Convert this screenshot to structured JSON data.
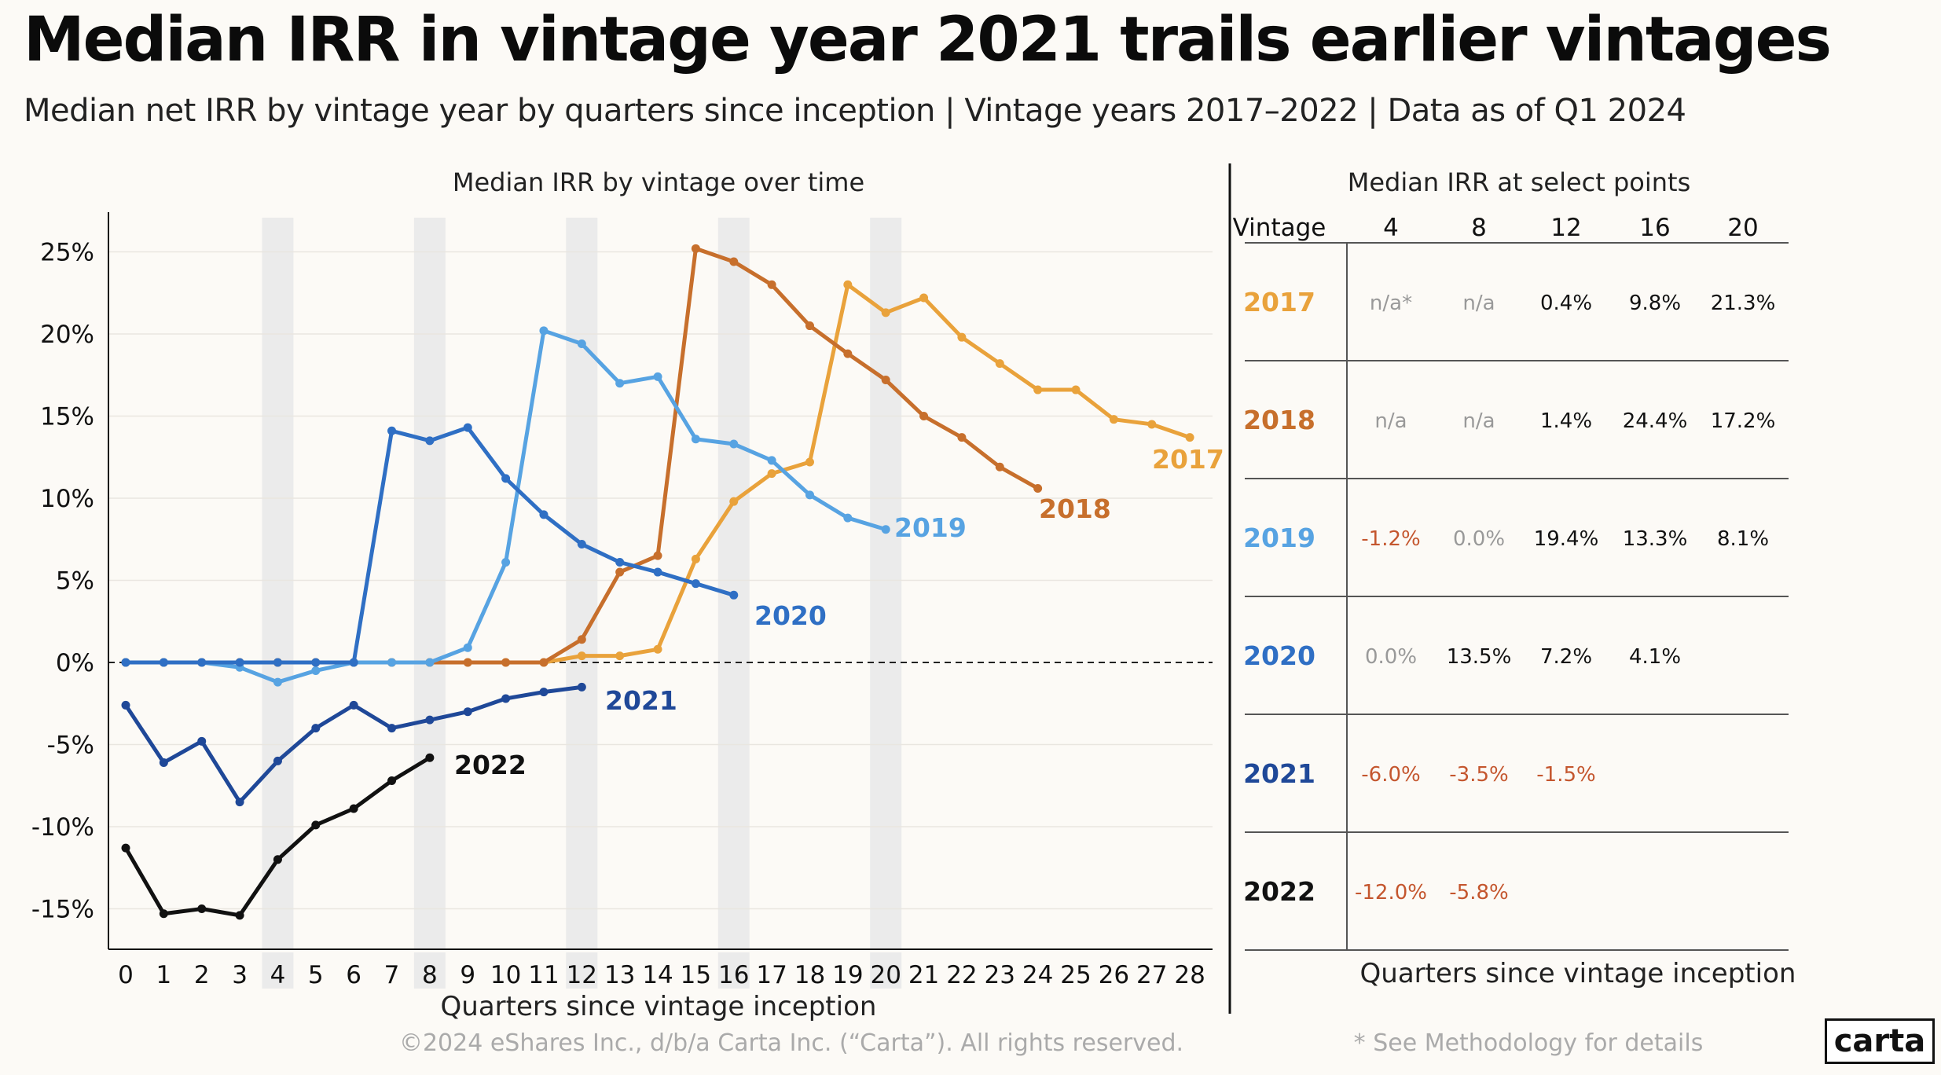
{
  "title": "Median IRR in vintage year 2021 trails earlier vintages",
  "subtitle": "Median net IRR by vintage year by quarters since inception | Vintage years 2017–2022 | Data as of Q1 2024",
  "footer": {
    "copyright": "©2024 eShares Inc., d/b/a Carta Inc. (“Carta”). All rights reserved.",
    "note": "* See Methodology for details",
    "logo": "carta"
  },
  "colors": {
    "2017": "#e9a23b",
    "2018": "#c76f2c",
    "2019": "#57a3e2",
    "2020": "#2f6fc4",
    "2021": "#1f4898",
    "2022": "#111111",
    "negative": "#c4562e",
    "na": "#999999",
    "highlight_band": "#ebebeb"
  },
  "chart_data": [
    {
      "type": "line",
      "title": "Median IRR by vintage over time",
      "xlabel": "Quarters since vintage inception",
      "ylabel": "",
      "x": [
        0,
        1,
        2,
        3,
        4,
        5,
        6,
        7,
        8,
        9,
        10,
        11,
        12,
        13,
        14,
        15,
        16,
        17,
        18,
        19,
        20,
        21,
        22,
        23,
        24,
        25,
        26,
        27,
        28
      ],
      "xlim": [
        -0.5,
        28.5
      ],
      "ylim": [
        -17.5,
        27
      ],
      "yticks": [
        25,
        20,
        15,
        10,
        5,
        0,
        -5,
        -10,
        -15
      ],
      "ytick_labels": [
        "25%",
        "20%",
        "15%",
        "10%",
        "5%",
        "0%",
        "-5%",
        "-10%",
        "-15%"
      ],
      "highlight_quarters": [
        4,
        8,
        12,
        16,
        20
      ],
      "grid": true,
      "series": [
        {
          "name": "2017",
          "x": [
            0,
            1,
            2,
            3,
            4,
            5,
            6,
            7,
            8,
            9,
            10,
            11,
            12,
            13,
            14,
            15,
            16,
            17,
            18,
            19,
            20,
            21,
            22,
            23,
            24,
            25,
            26,
            27,
            28
          ],
          "values": [
            0,
            0,
            0,
            0,
            0,
            0,
            0,
            0,
            0,
            0,
            0,
            0,
            0.4,
            0.4,
            0.8,
            6.3,
            9.8,
            11.5,
            12.2,
            23.0,
            21.3,
            22.2,
            19.8,
            18.2,
            16.6,
            16.6,
            14.8,
            14.5,
            13.7
          ]
        },
        {
          "name": "2018",
          "x": [
            0,
            1,
            2,
            3,
            4,
            5,
            6,
            7,
            8,
            9,
            10,
            11,
            12,
            13,
            14,
            15,
            16,
            17,
            18,
            19,
            20,
            21,
            22,
            23,
            24
          ],
          "values": [
            0,
            0,
            0,
            0,
            0,
            0,
            0,
            0,
            0,
            0,
            0,
            0,
            1.4,
            5.5,
            6.5,
            25.2,
            24.4,
            23.0,
            20.5,
            18.8,
            17.2,
            15.0,
            13.7,
            11.9,
            10.6
          ]
        },
        {
          "name": "2019",
          "x": [
            0,
            1,
            2,
            3,
            4,
            5,
            6,
            7,
            8,
            9,
            10,
            11,
            12,
            13,
            14,
            15,
            16,
            17,
            18,
            19,
            20
          ],
          "values": [
            0,
            0,
            0,
            -0.3,
            -1.2,
            -0.5,
            0,
            0,
            0,
            0.9,
            6.1,
            20.2,
            19.4,
            17.0,
            17.4,
            13.6,
            13.3,
            12.3,
            10.2,
            8.8,
            8.1
          ]
        },
        {
          "name": "2020",
          "x": [
            0,
            1,
            2,
            3,
            4,
            5,
            6,
            7,
            8,
            9,
            10,
            11,
            12,
            13,
            14,
            15,
            16
          ],
          "values": [
            0,
            0,
            0,
            0,
            0,
            0,
            0,
            14.1,
            13.5,
            14.3,
            11.2,
            9.0,
            7.2,
            6.1,
            5.5,
            4.8,
            4.1
          ]
        },
        {
          "name": "2021",
          "x": [
            0,
            1,
            2,
            3,
            4,
            5,
            6,
            7,
            8,
            9,
            10,
            11,
            12
          ],
          "values": [
            -2.6,
            -6.1,
            -4.8,
            -8.5,
            -6.0,
            -4.0,
            -2.6,
            -4.0,
            -3.5,
            -3.0,
            -2.2,
            -1.8,
            -1.5
          ]
        },
        {
          "name": "2022",
          "x": [
            0,
            1,
            2,
            3,
            4,
            5,
            6,
            7,
            8
          ],
          "values": [
            -11.3,
            -15.3,
            -15.0,
            -15.4,
            -12.0,
            -9.9,
            -8.9,
            -7.2,
            -5.8
          ]
        }
      ]
    },
    {
      "type": "table",
      "title": "Median IRR at select points",
      "xlabel": "Quarters since vintage inception",
      "header": [
        "Vintage",
        "4",
        "8",
        "12",
        "16",
        "20"
      ],
      "rows": [
        {
          "vintage": "2017",
          "cells": [
            "n/a*",
            "n/a",
            "0.4%",
            "9.8%",
            "21.3%"
          ]
        },
        {
          "vintage": "2018",
          "cells": [
            "n/a",
            "n/a",
            "1.4%",
            "24.4%",
            "17.2%"
          ]
        },
        {
          "vintage": "2019",
          "cells": [
            "-1.2%",
            "0.0%",
            "19.4%",
            "13.3%",
            "8.1%"
          ]
        },
        {
          "vintage": "2020",
          "cells": [
            "0.0%",
            "13.5%",
            "7.2%",
            "4.1%",
            ""
          ]
        },
        {
          "vintage": "2021",
          "cells": [
            "-6.0%",
            "-3.5%",
            "-1.5%",
            "",
            ""
          ]
        },
        {
          "vintage": "2022",
          "cells": [
            "-12.0%",
            "-5.8%",
            "",
            "",
            ""
          ]
        }
      ]
    }
  ]
}
